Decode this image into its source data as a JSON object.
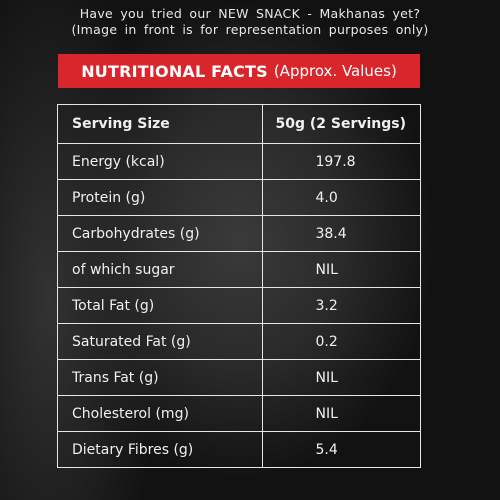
{
  "intro": {
    "line1": "Have you tried our NEW SNACK - Makhanas yet?",
    "line2": "(Image in front is for representation purposes only)"
  },
  "banner": {
    "title": "NUTRITIONAL FACTS",
    "subtitle": "(Approx. Values)",
    "color": "#d9262c"
  },
  "table": {
    "header": {
      "label": "Serving Size",
      "value": "50g (2 Servings)"
    },
    "rows": [
      {
        "label": "Energy (kcal)",
        "value": "197.8"
      },
      {
        "label": "Protein (g)",
        "value": "4.0"
      },
      {
        "label": "Carbohydrates (g)",
        "value": "38.4"
      },
      {
        "label": "of which sugar",
        "value": "NIL"
      },
      {
        "label": "Total Fat (g)",
        "value": "3.2"
      },
      {
        "label": "Saturated Fat (g)",
        "value": "0.2"
      },
      {
        "label": "Trans Fat (g)",
        "value": "NIL"
      },
      {
        "label": "Cholesterol (mg)",
        "value": "NIL"
      },
      {
        "label": "Dietary Fibres (g)",
        "value": "5.4"
      }
    ]
  }
}
